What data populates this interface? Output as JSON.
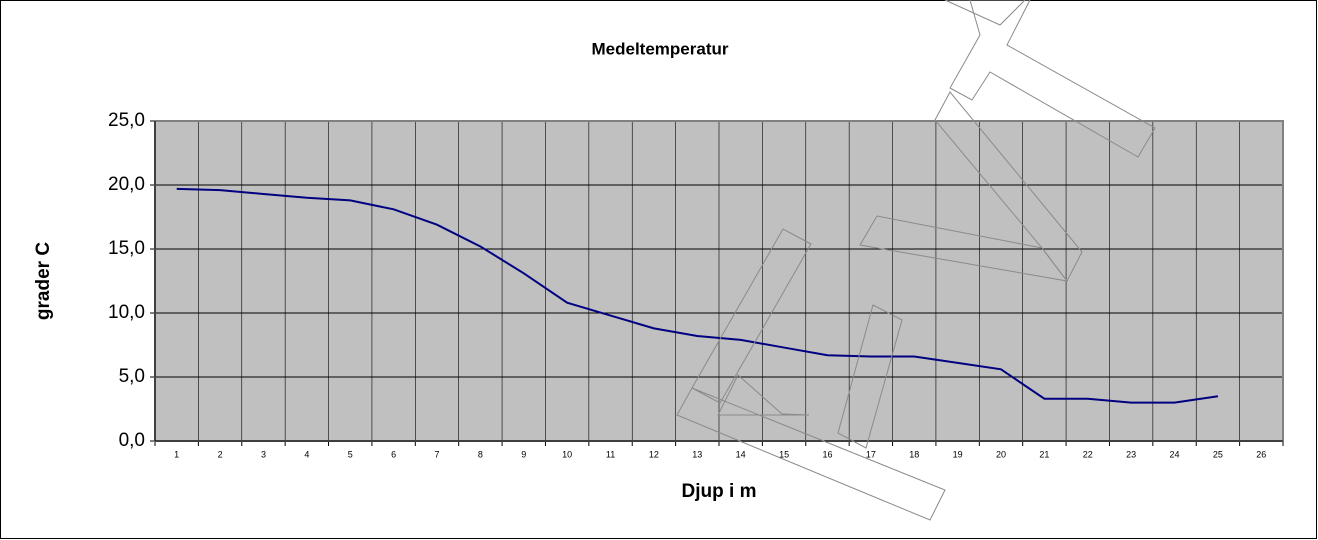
{
  "chart_data": {
    "type": "line",
    "title": "Medeltemperatur",
    "x_label": "Djup i m",
    "y_label": "grader C",
    "categories": [
      "1",
      "2",
      "3",
      "4",
      "5",
      "6",
      "7",
      "8",
      "9",
      "10",
      "11",
      "12",
      "13",
      "14",
      "15",
      "16",
      "17",
      "18",
      "19",
      "20",
      "21",
      "22",
      "23",
      "24",
      "25",
      "26"
    ],
    "series": [
      {
        "name": "Medeltemperatur",
        "color": "#000080",
        "values": [
          19.7,
          19.6,
          19.3,
          19.0,
          18.8,
          18.1,
          16.9,
          15.2,
          13.1,
          10.8,
          9.8,
          8.8,
          8.2,
          7.9,
          7.3,
          6.7,
          6.6,
          6.6,
          6.1,
          5.6,
          3.3,
          3.3,
          3.0,
          3.0,
          3.5,
          null
        ]
      }
    ],
    "ylim": [
      0,
      25
    ],
    "yticks": [
      {
        "value": 0,
        "label": "0,0"
      },
      {
        "value": 5,
        "label": "5,0"
      },
      {
        "value": 10,
        "label": "10,0"
      },
      {
        "value": 15,
        "label": "15,0"
      },
      {
        "value": 20,
        "label": "20,0"
      },
      {
        "value": 25,
        "label": "25,0"
      }
    ],
    "grid": true,
    "plot_background": "#c0c0c0"
  }
}
